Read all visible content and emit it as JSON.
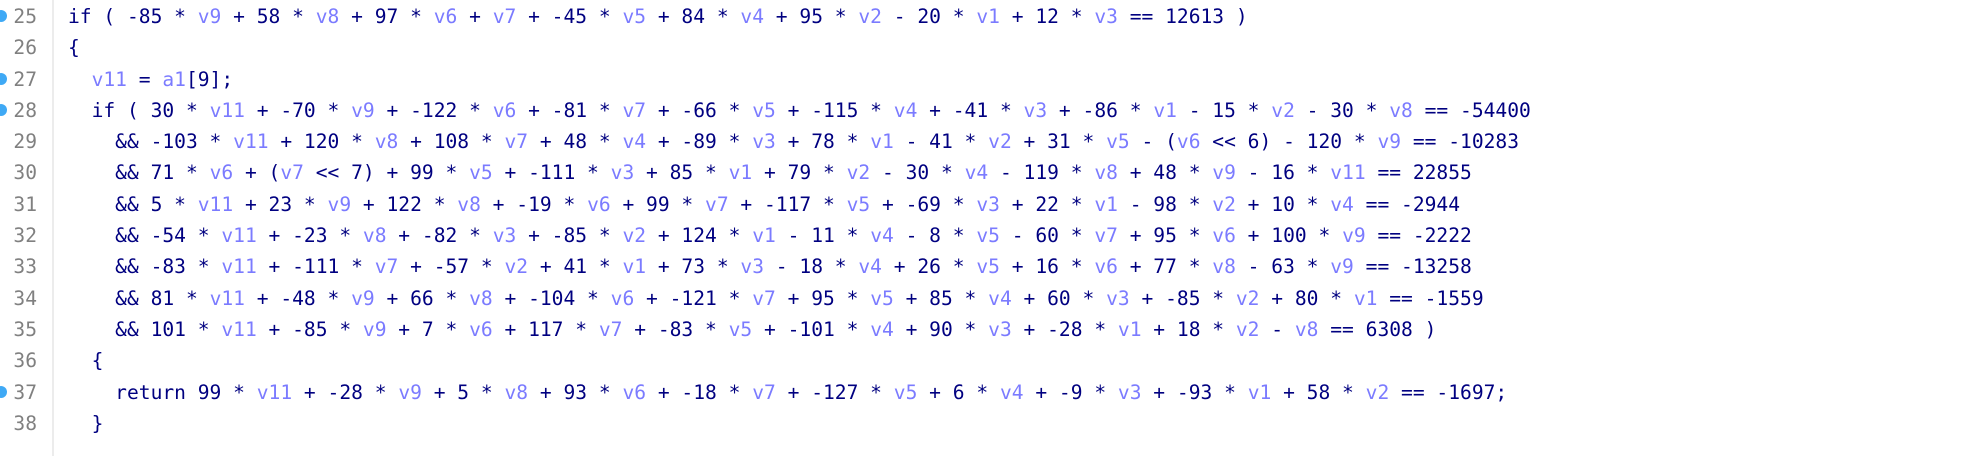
{
  "colors": {
    "code": "#000080",
    "variable": "#7b7bff",
    "line_number": "#808080",
    "breakpoint": "#3fa9f5"
  },
  "lines": [
    {
      "number": "25",
      "breakpoint": true,
      "tokens": [
        "if ( -85 * ",
        "v9",
        " + 58 * ",
        "v8",
        " + 97 * ",
        "v6",
        " + ",
        "v7",
        " + -45 * ",
        "v5",
        " + 84 * ",
        "v4",
        " + 95 * ",
        "v2",
        " - 20 * ",
        "v1",
        " + 12 * ",
        "v3",
        " == 12613 )"
      ]
    },
    {
      "number": "26",
      "breakpoint": false,
      "tokens": [
        "{"
      ]
    },
    {
      "number": "27",
      "breakpoint": true,
      "tokens": [
        "  ",
        "v11",
        " = ",
        "a1",
        "[9];"
      ]
    },
    {
      "number": "28",
      "breakpoint": true,
      "tokens": [
        "  if ( 30 * ",
        "v11",
        " + -70 * ",
        "v9",
        " + -122 * ",
        "v6",
        " + -81 * ",
        "v7",
        " + -66 * ",
        "v5",
        " + -115 * ",
        "v4",
        " + -41 * ",
        "v3",
        " + -86 * ",
        "v1",
        " - 15 * ",
        "v2",
        " - 30 * ",
        "v8",
        " == -54400"
      ]
    },
    {
      "number": "29",
      "breakpoint": false,
      "tokens": [
        "    && -103 * ",
        "v11",
        " + 120 * ",
        "v8",
        " + 108 * ",
        "v7",
        " + 48 * ",
        "v4",
        " + -89 * ",
        "v3",
        " + 78 * ",
        "v1",
        " - 41 * ",
        "v2",
        " + 31 * ",
        "v5",
        " - (",
        "v6",
        " << 6) - 120 * ",
        "v9",
        " == -10283"
      ]
    },
    {
      "number": "30",
      "breakpoint": false,
      "tokens": [
        "    && 71 * ",
        "v6",
        " + (",
        "v7",
        " << 7) + 99 * ",
        "v5",
        " + -111 * ",
        "v3",
        " + 85 * ",
        "v1",
        " + 79 * ",
        "v2",
        " - 30 * ",
        "v4",
        " - 119 * ",
        "v8",
        " + 48 * ",
        "v9",
        " - 16 * ",
        "v11",
        " == 22855"
      ]
    },
    {
      "number": "31",
      "breakpoint": false,
      "tokens": [
        "    && 5 * ",
        "v11",
        " + 23 * ",
        "v9",
        " + 122 * ",
        "v8",
        " + -19 * ",
        "v6",
        " + 99 * ",
        "v7",
        " + -117 * ",
        "v5",
        " + -69 * ",
        "v3",
        " + 22 * ",
        "v1",
        " - 98 * ",
        "v2",
        " + 10 * ",
        "v4",
        " == -2944"
      ]
    },
    {
      "number": "32",
      "breakpoint": false,
      "tokens": [
        "    && -54 * ",
        "v11",
        " + -23 * ",
        "v8",
        " + -82 * ",
        "v3",
        " + -85 * ",
        "v2",
        " + 124 * ",
        "v1",
        " - 11 * ",
        "v4",
        " - 8 * ",
        "v5",
        " - 60 * ",
        "v7",
        " + 95 * ",
        "v6",
        " + 100 * ",
        "v9",
        " == -2222"
      ]
    },
    {
      "number": "33",
      "breakpoint": false,
      "tokens": [
        "    && -83 * ",
        "v11",
        " + -111 * ",
        "v7",
        " + -57 * ",
        "v2",
        " + 41 * ",
        "v1",
        " + 73 * ",
        "v3",
        " - 18 * ",
        "v4",
        " + 26 * ",
        "v5",
        " + 16 * ",
        "v6",
        " + 77 * ",
        "v8",
        " - 63 * ",
        "v9",
        " == -13258"
      ]
    },
    {
      "number": "34",
      "breakpoint": false,
      "tokens": [
        "    && 81 * ",
        "v11",
        " + -48 * ",
        "v9",
        " + 66 * ",
        "v8",
        " + -104 * ",
        "v6",
        " + -121 * ",
        "v7",
        " + 95 * ",
        "v5",
        " + 85 * ",
        "v4",
        " + 60 * ",
        "v3",
        " + -85 * ",
        "v2",
        " + 80 * ",
        "v1",
        " == -1559"
      ]
    },
    {
      "number": "35",
      "breakpoint": false,
      "tokens": [
        "    && 101 * ",
        "v11",
        " + -85 * ",
        "v9",
        " + 7 * ",
        "v6",
        " + 117 * ",
        "v7",
        " + -83 * ",
        "v5",
        " + -101 * ",
        "v4",
        " + 90 * ",
        "v3",
        " + -28 * ",
        "v1",
        " + 18 * ",
        "v2",
        " - ",
        "v8",
        " == 6308 )"
      ]
    },
    {
      "number": "36",
      "breakpoint": false,
      "tokens": [
        "  {"
      ]
    },
    {
      "number": "37",
      "breakpoint": true,
      "tokens": [
        "    return 99 * ",
        "v11",
        " + -28 * ",
        "v9",
        " + 5 * ",
        "v8",
        " + 93 * ",
        "v6",
        " + -18 * ",
        "v7",
        " + -127 * ",
        "v5",
        " + 6 * ",
        "v4",
        " + -9 * ",
        "v3",
        " + -93 * ",
        "v1",
        " + 58 * ",
        "v2",
        " == -1697;"
      ]
    },
    {
      "number": "38",
      "breakpoint": false,
      "tokens": [
        "  }"
      ]
    }
  ]
}
